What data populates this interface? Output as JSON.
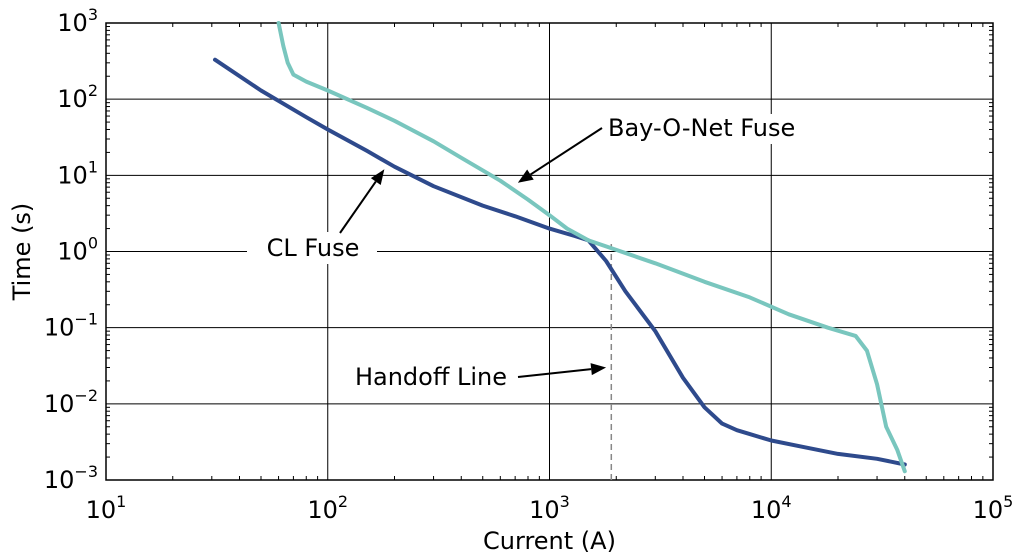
{
  "chart_data": {
    "type": "line",
    "xscale": "log",
    "yscale": "log",
    "xlabel": "Current (A)",
    "ylabel": "Time (s)",
    "xlim": [
      10,
      100000
    ],
    "ylim": [
      0.001,
      1000
    ],
    "grid": true,
    "x_ticks": [
      {
        "value": 10,
        "base": "10",
        "exp": "1"
      },
      {
        "value": 100,
        "base": "10",
        "exp": "2"
      },
      {
        "value": 1000,
        "base": "10",
        "exp": "3"
      },
      {
        "value": 10000,
        "base": "10",
        "exp": "4"
      },
      {
        "value": 100000,
        "base": "10",
        "exp": "5"
      }
    ],
    "y_ticks": [
      {
        "value": 0.001,
        "base": "10",
        "exp": "−3"
      },
      {
        "value": 0.01,
        "base": "10",
        "exp": "−2"
      },
      {
        "value": 0.1,
        "base": "10",
        "exp": "−1"
      },
      {
        "value": 1,
        "base": "10",
        "exp": "0"
      },
      {
        "value": 10,
        "base": "10",
        "exp": "1"
      },
      {
        "value": 100,
        "base": "10",
        "exp": "2"
      },
      {
        "value": 1000,
        "base": "10",
        "exp": "3"
      }
    ],
    "series": [
      {
        "name": "CL Fuse",
        "color": "#2e4a8c",
        "x": [
          31,
          50,
          80,
          100,
          150,
          200,
          300,
          500,
          700,
          1000,
          1300,
          1500,
          1800,
          2200,
          3000,
          4000,
          5000,
          6000,
          7000,
          8000,
          10000,
          14000,
          20000,
          30000,
          40000
        ],
        "y": [
          330,
          130,
          58,
          40,
          21,
          13,
          7.2,
          4.0,
          2.9,
          2.0,
          1.6,
          1.4,
          0.75,
          0.3,
          0.09,
          0.022,
          0.009,
          0.0055,
          0.0045,
          0.004,
          0.0033,
          0.0027,
          0.0022,
          0.0019,
          0.0016
        ]
      },
      {
        "name": "Bay-O-Net Fuse",
        "color": "#79c6be",
        "x": [
          60,
          63,
          66,
          70,
          80,
          100,
          150,
          200,
          300,
          400,
          600,
          800,
          1000,
          1200,
          1500,
          2000,
          3000,
          5000,
          8000,
          12000,
          18000,
          24000,
          27000,
          30000,
          33000,
          37000,
          40000
        ],
        "y": [
          1000,
          500,
          300,
          210,
          170,
          130,
          77,
          52,
          28,
          17,
          8.5,
          4.8,
          3.0,
          2.0,
          1.4,
          1.05,
          0.7,
          0.4,
          0.25,
          0.15,
          0.1,
          0.078,
          0.05,
          0.018,
          0.005,
          0.0025,
          0.0013
        ]
      }
    ],
    "annotations": [
      {
        "id": "bay",
        "text": "Bay-O-Net Fuse",
        "arrow_to": [
          720,
          8
        ]
      },
      {
        "id": "cl",
        "text": "CL Fuse",
        "arrow_to": [
          180,
          12
        ]
      },
      {
        "id": "handoff",
        "text": "Handoff Line",
        "arrow_to": [
          1800,
          0.03
        ]
      }
    ],
    "handoff_line": {
      "x": 1900,
      "y_from": 0.001,
      "y_to": 1.4
    }
  }
}
